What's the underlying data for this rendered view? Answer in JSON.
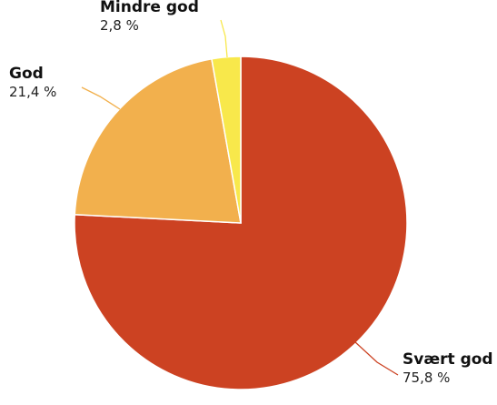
{
  "chart_data": {
    "type": "pie",
    "title": "",
    "slices": [
      {
        "label": "Svært god",
        "value": 75.8,
        "value_label": "75,8 %",
        "color": "#cc4222"
      },
      {
        "label": "God",
        "value": 21.4,
        "value_label": "21,4 %",
        "color": "#f2b04d"
      },
      {
        "label": "Mindre god",
        "value": 2.8,
        "value_label": "2,8 %",
        "color": "#f8e84b"
      }
    ],
    "start_angle": "12 o'clock",
    "direction": "clockwise",
    "legend": "none"
  }
}
